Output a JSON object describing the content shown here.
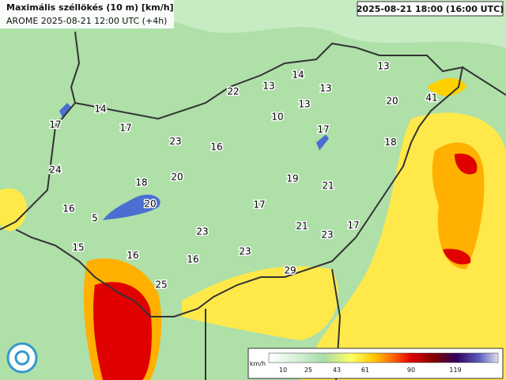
{
  "header": {
    "title": "Maximális széllökés (10 m) [km/h]",
    "subtitle": "AROME 2025-08-21 12:00 UTC (+4h)",
    "valid_time": "2025-08-21 18:00 (16:00 UTC)"
  },
  "map_labels": [
    "17",
    "14",
    "17",
    "23",
    "16",
    "22",
    "13",
    "14",
    "13",
    "13",
    "10",
    "17",
    "13",
    "20",
    "41",
    "18",
    "24",
    "20",
    "18",
    "19",
    "21",
    "16",
    "5",
    "20",
    "17",
    "21",
    "23",
    "17",
    "23",
    "15",
    "16",
    "16",
    "23",
    "29",
    "25"
  ],
  "legend": {
    "unit": "km/h",
    "ticks": [
      "10",
      "25",
      "43",
      "61",
      "90",
      "119"
    ]
  }
}
